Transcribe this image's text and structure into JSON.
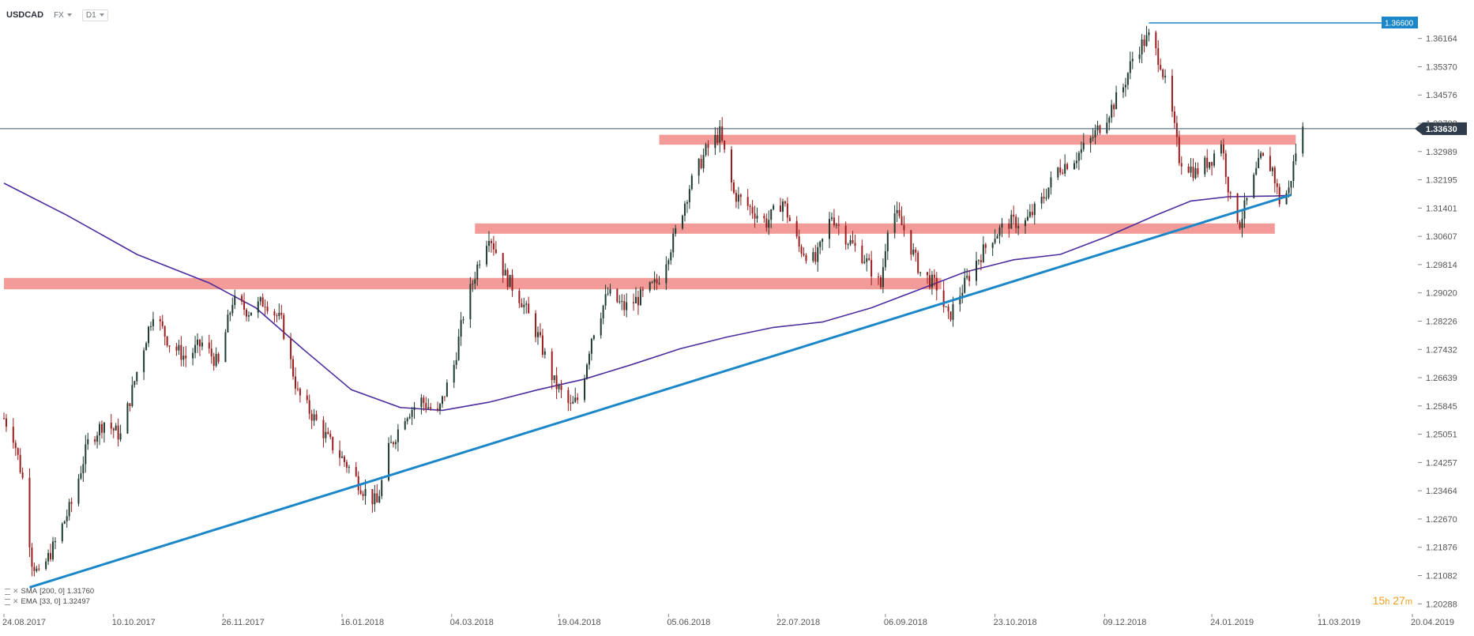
{
  "header": {
    "symbol": "USDCAD",
    "market": "FX",
    "timeframe": "D1"
  },
  "indicators": [
    {
      "name": "SMA",
      "params": "[200, 0]",
      "value": "1.31760",
      "color": "#5a32a8"
    },
    {
      "name": "EMA",
      "params": "[33, 0]",
      "value": "1.32497",
      "color": "#5a32a8"
    }
  ],
  "timer": {
    "hours": "15",
    "hours_unit": "h",
    "minutes": "27",
    "minutes_unit": "m"
  },
  "colors": {
    "bull": "#1f3a2e",
    "bear": "#9b1c1c",
    "zone": "#f08a86",
    "trend": "#1b87c9",
    "ma": "#4b2d9e",
    "price_line": "#3d5366",
    "grid_text": "#555555"
  },
  "chart_data": {
    "type": "candlestick",
    "title": "",
    "y_ticks": [
      "1.36164",
      "1.35370",
      "1.34576",
      "1.33782",
      "1.32989",
      "1.32195",
      "1.31401",
      "1.30607",
      "1.29814",
      "1.29020",
      "1.28226",
      "1.27432",
      "1.26639",
      "1.25845",
      "1.25051",
      "1.24257",
      "1.23464",
      "1.22670",
      "1.21876",
      "1.21082",
      "1.20288"
    ],
    "ylim": [
      1.2005,
      1.368
    ],
    "x_ticks": [
      "24.08.2017",
      "10.10.2017",
      "26.11.2017",
      "16.01.2018",
      "04.03.2018",
      "19.04.2018",
      "05.06.2018",
      "22.07.2018",
      "06.09.2018",
      "23.10.2018",
      "09.12.2018",
      "24.01.2019",
      "11.03.2019",
      "20.04.2019"
    ],
    "x_start": "2017-08-24",
    "x_end": "2019-04-20",
    "current_price": "1.33630",
    "high_level": {
      "label": "1.36600",
      "value": 1.366,
      "from": "2018-12-28"
    },
    "zones": [
      {
        "from": "2017-08-24",
        "to": "2018-09-30",
        "low": 1.2912,
        "high": 1.2944
      },
      {
        "from": "2018-03-14",
        "to": "2019-02-20",
        "low": 1.3068,
        "high": 1.3097
      },
      {
        "from": "2018-06-01",
        "to": "2019-03-01",
        "low": 1.3318,
        "high": 1.3346
      }
    ],
    "trendline": {
      "from_date": "2017-09-04",
      "from_value": 1.2075,
      "to_date": "2019-02-27",
      "to_value": 1.3177
    },
    "ma_series": [
      [
        "2017-08-24",
        1.321
      ],
      [
        "2017-09-20",
        1.312
      ],
      [
        "2017-10-20",
        1.301
      ],
      [
        "2017-11-20",
        1.293
      ],
      [
        "2017-12-10",
        1.286
      ],
      [
        "2017-12-31",
        1.274
      ],
      [
        "2018-01-20",
        1.263
      ],
      [
        "2018-02-10",
        1.258
      ],
      [
        "2018-02-28",
        1.2572
      ],
      [
        "2018-03-20",
        1.2595
      ],
      [
        "2018-04-10",
        1.263
      ],
      [
        "2018-04-30",
        1.266
      ],
      [
        "2018-05-20",
        1.27
      ],
      [
        "2018-06-10",
        1.2745
      ],
      [
        "2018-06-30",
        1.2778
      ],
      [
        "2018-07-20",
        1.2805
      ],
      [
        "2018-08-10",
        1.282
      ],
      [
        "2018-08-31",
        1.286
      ],
      [
        "2018-09-20",
        1.291
      ],
      [
        "2018-10-10",
        1.296
      ],
      [
        "2018-10-31",
        1.2995
      ],
      [
        "2018-11-20",
        1.301
      ],
      [
        "2018-12-10",
        1.306
      ],
      [
        "2018-12-31",
        1.312
      ],
      [
        "2019-01-15",
        1.316
      ],
      [
        "2019-01-31",
        1.3172
      ],
      [
        "2019-02-20",
        1.3174
      ],
      [
        "2019-02-27",
        1.3176
      ]
    ],
    "price_path": [
      [
        "2017-08-24",
        1.255
      ],
      [
        "2017-08-28",
        1.25
      ],
      [
        "2017-09-01",
        1.238
      ],
      [
        "2017-09-05",
        1.215
      ],
      [
        "2017-09-08",
        1.2105
      ],
      [
        "2017-09-15",
        1.22
      ],
      [
        "2017-09-22",
        1.231
      ],
      [
        "2017-09-29",
        1.248
      ],
      [
        "2017-10-06",
        1.254
      ],
      [
        "2017-10-13",
        1.25
      ],
      [
        "2017-10-20",
        1.268
      ],
      [
        "2017-10-27",
        1.285
      ],
      [
        "2017-11-03",
        1.276
      ],
      [
        "2017-11-10",
        1.272
      ],
      [
        "2017-11-17",
        1.276
      ],
      [
        "2017-11-24",
        1.27
      ],
      [
        "2017-11-30",
        1.288
      ],
      [
        "2017-12-07",
        1.285
      ],
      [
        "2017-12-14",
        1.288
      ],
      [
        "2017-12-21",
        1.282
      ],
      [
        "2017-12-28",
        1.262
      ],
      [
        "2018-01-04",
        1.255
      ],
      [
        "2018-01-11",
        1.248
      ],
      [
        "2018-01-18",
        1.242
      ],
      [
        "2018-01-25",
        1.235
      ],
      [
        "2018-01-31",
        1.231
      ],
      [
        "2018-02-05",
        1.246
      ],
      [
        "2018-02-12",
        1.256
      ],
      [
        "2018-02-19",
        1.26
      ],
      [
        "2018-02-26",
        1.256
      ],
      [
        "2018-03-05",
        1.27
      ],
      [
        "2018-03-09",
        1.284
      ],
      [
        "2018-03-16",
        1.3
      ],
      [
        "2018-03-20",
        1.307
      ],
      [
        "2018-03-27",
        1.295
      ],
      [
        "2018-04-03",
        1.288
      ],
      [
        "2018-04-10",
        1.278
      ],
      [
        "2018-04-17",
        1.265
      ],
      [
        "2018-04-24",
        1.258
      ],
      [
        "2018-04-28",
        1.261
      ],
      [
        "2018-05-03",
        1.278
      ],
      [
        "2018-05-10",
        1.29
      ],
      [
        "2018-05-17",
        1.286
      ],
      [
        "2018-05-24",
        1.289
      ],
      [
        "2018-05-31",
        1.293
      ],
      [
        "2018-06-07",
        1.305
      ],
      [
        "2018-06-14",
        1.32
      ],
      [
        "2018-06-21",
        1.33
      ],
      [
        "2018-06-27",
        1.335
      ],
      [
        "2018-07-03",
        1.318
      ],
      [
        "2018-07-10",
        1.314
      ],
      [
        "2018-07-17",
        1.31
      ],
      [
        "2018-07-24",
        1.316
      ],
      [
        "2018-07-31",
        1.303
      ],
      [
        "2018-08-07",
        1.299
      ],
      [
        "2018-08-14",
        1.312
      ],
      [
        "2018-08-21",
        1.305
      ],
      [
        "2018-08-28",
        1.3
      ],
      [
        "2018-09-04",
        1.292
      ],
      [
        "2018-09-08",
        1.315
      ],
      [
        "2018-09-14",
        1.308
      ],
      [
        "2018-09-21",
        1.296
      ],
      [
        "2018-09-28",
        1.292
      ],
      [
        "2018-10-03",
        1.283
      ],
      [
        "2018-10-08",
        1.29
      ],
      [
        "2018-10-15",
        1.299
      ],
      [
        "2018-10-22",
        1.306
      ],
      [
        "2018-10-29",
        1.31
      ],
      [
        "2018-11-05",
        1.31
      ],
      [
        "2018-11-12",
        1.316
      ],
      [
        "2018-11-19",
        1.325
      ],
      [
        "2018-11-26",
        1.328
      ],
      [
        "2018-12-03",
        1.333
      ],
      [
        "2018-12-10",
        1.34
      ],
      [
        "2018-12-17",
        1.348
      ],
      [
        "2018-12-22",
        1.358
      ],
      [
        "2018-12-28",
        1.362
      ],
      [
        "2019-01-02",
        1.355
      ],
      [
        "2019-01-07",
        1.34
      ],
      [
        "2019-01-10",
        1.328
      ],
      [
        "2019-01-17",
        1.324
      ],
      [
        "2019-01-24",
        1.328
      ],
      [
        "2019-01-28",
        1.333
      ],
      [
        "2019-02-01",
        1.316
      ],
      [
        "2019-02-05",
        1.31
      ],
      [
        "2019-02-09",
        1.318
      ],
      [
        "2019-02-14",
        1.328
      ],
      [
        "2019-02-19",
        1.325
      ],
      [
        "2019-02-22",
        1.316
      ],
      [
        "2019-02-26",
        1.319
      ],
      [
        "2019-03-01",
        1.33
      ],
      [
        "2019-03-04",
        1.336
      ]
    ]
  }
}
